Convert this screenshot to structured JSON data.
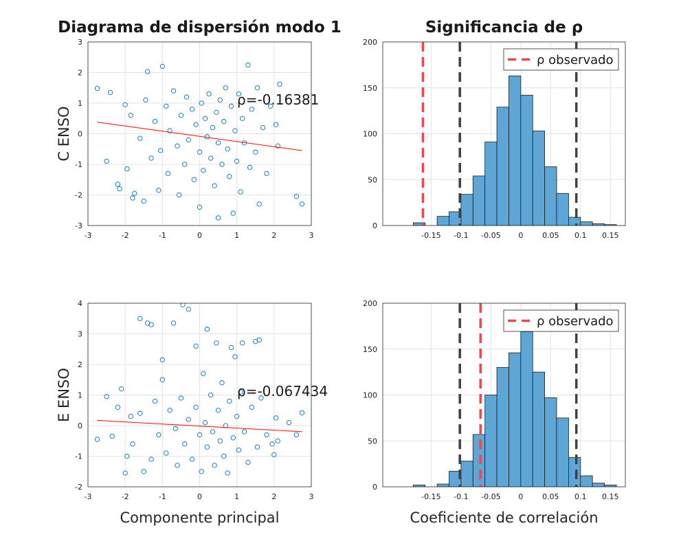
{
  "chart_data": [
    {
      "type": "scatter",
      "title": "Diagrama de dispersión modo 1",
      "ylabel": "C ENSO",
      "annotation": "ρ=-0.16381",
      "color": "#0072bd",
      "grid": true,
      "xlim": [
        -3,
        3
      ],
      "ylim": [
        -3,
        3
      ],
      "xticks": [
        -3,
        -2,
        -1,
        0,
        1,
        2,
        3
      ],
      "yticks": [
        -3,
        -2,
        -1,
        0,
        1,
        2,
        3
      ],
      "x": [
        -2.75,
        -2.4,
        -2.5,
        -2.2,
        -2.15,
        -2.0,
        -1.95,
        -1.85,
        -1.8,
        -1.75,
        -1.6,
        -1.5,
        -1.45,
        -1.4,
        -1.3,
        -1.2,
        -1.1,
        -1.05,
        -1.0,
        -0.9,
        -0.85,
        -0.8,
        -0.7,
        -0.6,
        -0.55,
        -0.5,
        -0.4,
        -0.35,
        -0.3,
        -0.2,
        -0.15,
        -0.1,
        0.0,
        0.0,
        0.05,
        0.1,
        0.15,
        0.2,
        0.25,
        0.3,
        0.35,
        0.4,
        0.45,
        0.5,
        0.5,
        0.55,
        0.6,
        0.65,
        0.7,
        0.75,
        0.8,
        0.85,
        0.9,
        0.95,
        1.0,
        1.05,
        1.1,
        1.15,
        1.2,
        1.3,
        1.35,
        1.4,
        1.5,
        1.55,
        1.6,
        1.7,
        1.8,
        1.9,
        2.05,
        2.1,
        2.15,
        2.6,
        2.75
      ],
      "values": [
        1.48,
        1.35,
        -0.9,
        -1.65,
        -1.8,
        0.95,
        -1.15,
        0.6,
        -2.1,
        -1.95,
        -0.15,
        -2.2,
        1.1,
        2.03,
        -0.8,
        0.4,
        -1.85,
        -0.55,
        2.2,
        0.9,
        -1.3,
        0.1,
        1.4,
        -0.4,
        -2.0,
        0.6,
        -1.0,
        1.2,
        -0.2,
        0.8,
        -1.5,
        0.3,
        -2.4,
        -0.6,
        1.0,
        -1.2,
        0.5,
        -0.1,
        1.3,
        -0.8,
        0.2,
        -1.7,
        0.7,
        -2.75,
        -0.3,
        1.1,
        -1.0,
        0.4,
        1.5,
        -0.5,
        -1.4,
        0.9,
        -2.6,
        0.1,
        -0.9,
        1.3,
        -1.9,
        0.5,
        -0.3,
        2.25,
        -1.1,
        0.8,
        -0.6,
        1.5,
        -2.3,
        0.2,
        -1.3,
        0.9,
        0.3,
        -0.4,
        1.62,
        -2.05,
        -2.3
      ],
      "fit": {
        "color": "#ff0000",
        "x": [
          -2.75,
          2.75
        ],
        "y": [
          0.38,
          -0.55
        ]
      }
    },
    {
      "type": "histogram",
      "title": "Significancia de ρ",
      "color": "#5ea6d6",
      "grid": true,
      "xlim": [
        -0.231,
        0.175
      ],
      "ylim": [
        0,
        200
      ],
      "xticks": [
        -0.15,
        -0.1,
        -0.05,
        0,
        0.05,
        0.1,
        0.15
      ],
      "yticks": [
        0,
        50,
        100,
        150,
        200
      ],
      "bins": [
        -0.18,
        -0.16,
        -0.14,
        -0.12,
        -0.1,
        -0.08,
        -0.06,
        -0.04,
        -0.02,
        0,
        0.02,
        0.04,
        0.06,
        0.08,
        0.1,
        0.12,
        0.14,
        0.16
      ],
      "counts": [
        3,
        0,
        10,
        15,
        34,
        54,
        91,
        129,
        163,
        142,
        103,
        64,
        35,
        9,
        4,
        2,
        1
      ],
      "thresholds": [
        -0.102,
        0.093
      ],
      "threshold_color": "#404040",
      "observed": {
        "name": "ρ observado",
        "value": -0.16381,
        "color": "#f0474d"
      },
      "legend": "top-right"
    },
    {
      "type": "scatter",
      "ylabel": "E ENSO",
      "xlabel": "Componente principal",
      "annotation": "ρ=-0.067434",
      "color": "#0072bd",
      "grid": true,
      "xlim": [
        -3,
        3
      ],
      "ylim": [
        -2,
        4
      ],
      "xticks": [
        -3,
        -2,
        -1,
        0,
        1,
        2,
        3
      ],
      "yticks": [
        -2,
        -1,
        0,
        1,
        2,
        3,
        4
      ],
      "x": [
        -2.75,
        -2.5,
        -2.35,
        -2.2,
        -2.1,
        -2.0,
        -1.95,
        -1.85,
        -1.8,
        -1.6,
        -1.6,
        -1.5,
        -1.4,
        -1.3,
        -1.3,
        -1.2,
        -1.1,
        -1.0,
        -1.0,
        -0.9,
        -0.8,
        -0.7,
        -0.65,
        -0.6,
        -0.5,
        -0.45,
        -0.4,
        -0.3,
        -0.3,
        -0.2,
        -0.1,
        -0.1,
        0.0,
        0.05,
        0.1,
        0.15,
        0.2,
        0.2,
        0.3,
        0.35,
        0.4,
        0.45,
        0.5,
        0.55,
        0.6,
        0.65,
        0.7,
        0.75,
        0.8,
        0.85,
        0.9,
        0.95,
        1.0,
        1.05,
        1.1,
        1.15,
        1.2,
        1.3,
        1.4,
        1.5,
        1.55,
        1.6,
        1.65,
        1.8,
        1.95,
        2.0,
        2.05,
        2.1,
        2.4,
        2.6,
        2.75
      ],
      "values": [
        -0.45,
        0.95,
        -0.35,
        0.6,
        1.2,
        -1.55,
        -1.0,
        0.3,
        -0.6,
        3.5,
        0.4,
        -1.5,
        3.35,
        3.3,
        -1.1,
        0.8,
        -0.3,
        2.15,
        1.5,
        -0.9,
        0.5,
        3.35,
        -0.1,
        -1.3,
        0.9,
        3.95,
        -0.6,
        3.8,
        0.2,
        -1.1,
        2.6,
        0.6,
        -0.3,
        -1.5,
        1.7,
        0.1,
        3.15,
        -0.7,
        1.0,
        -0.2,
        -1.3,
        2.7,
        0.5,
        -0.5,
        1.4,
        -1.0,
        0.0,
        -1.55,
        0.8,
        2.55,
        -0.4,
        2.25,
        0.3,
        -0.8,
        1.1,
        2.7,
        -0.2,
        -1.2,
        0.6,
        2.75,
        -0.7,
        2.8,
        0.9,
        -0.3,
        -0.6,
        -0.95,
        0.25,
        -0.5,
        0.1,
        -0.3,
        0.42
      ],
      "fit": {
        "color": "#ff0000",
        "x": [
          -2.75,
          2.75
        ],
        "y": [
          0.17,
          -0.2
        ]
      }
    },
    {
      "type": "histogram",
      "xlabel": "Coeficiente de correlación",
      "color": "#5ea6d6",
      "grid": true,
      "xlim": [
        -0.231,
        0.175
      ],
      "ylim": [
        0,
        200
      ],
      "xticks": [
        -0.15,
        -0.1,
        -0.05,
        0,
        0.05,
        0.1,
        0.15
      ],
      "yticks": [
        0,
        50,
        100,
        150,
        200
      ],
      "bins": [
        -0.18,
        -0.16,
        -0.14,
        -0.12,
        -0.1,
        -0.08,
        -0.06,
        -0.04,
        -0.02,
        0,
        0.02,
        0.04,
        0.06,
        0.08,
        0.1,
        0.12,
        0.14,
        0.16
      ],
      "counts": [
        2,
        0,
        3,
        17,
        28,
        57,
        100,
        130,
        146,
        169,
        125,
        97,
        75,
        32,
        12,
        4,
        2
      ],
      "thresholds": [
        -0.102,
        0.093
      ],
      "threshold_color": "#404040",
      "observed": {
        "name": "ρ observado",
        "value": -0.067434,
        "color": "#f0474d"
      },
      "legend": "top-right"
    }
  ]
}
